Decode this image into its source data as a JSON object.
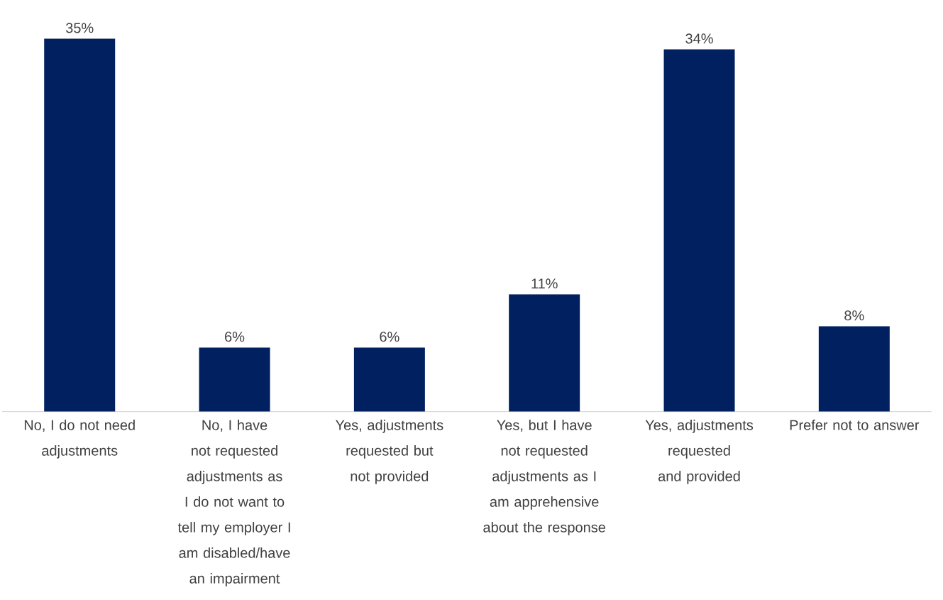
{
  "chart_data": {
    "type": "bar",
    "categories": [
      "No, I do not need adjustments",
      "No, I have not requested adjustments as I do not want to tell my employer I am disabled/have an impairment",
      "Yes, adjustments requested but not provided",
      "Yes, but I have not requested adjustments as I am apprehensive about the response",
      "Yes, adjustments requested and provided",
      "Prefer not to answer"
    ],
    "values": [
      35,
      6,
      6,
      11,
      34,
      8
    ],
    "value_labels": [
      "35%",
      "6%",
      "6%",
      "11%",
      "34%",
      "8%"
    ],
    "color": "#002060"
  }
}
